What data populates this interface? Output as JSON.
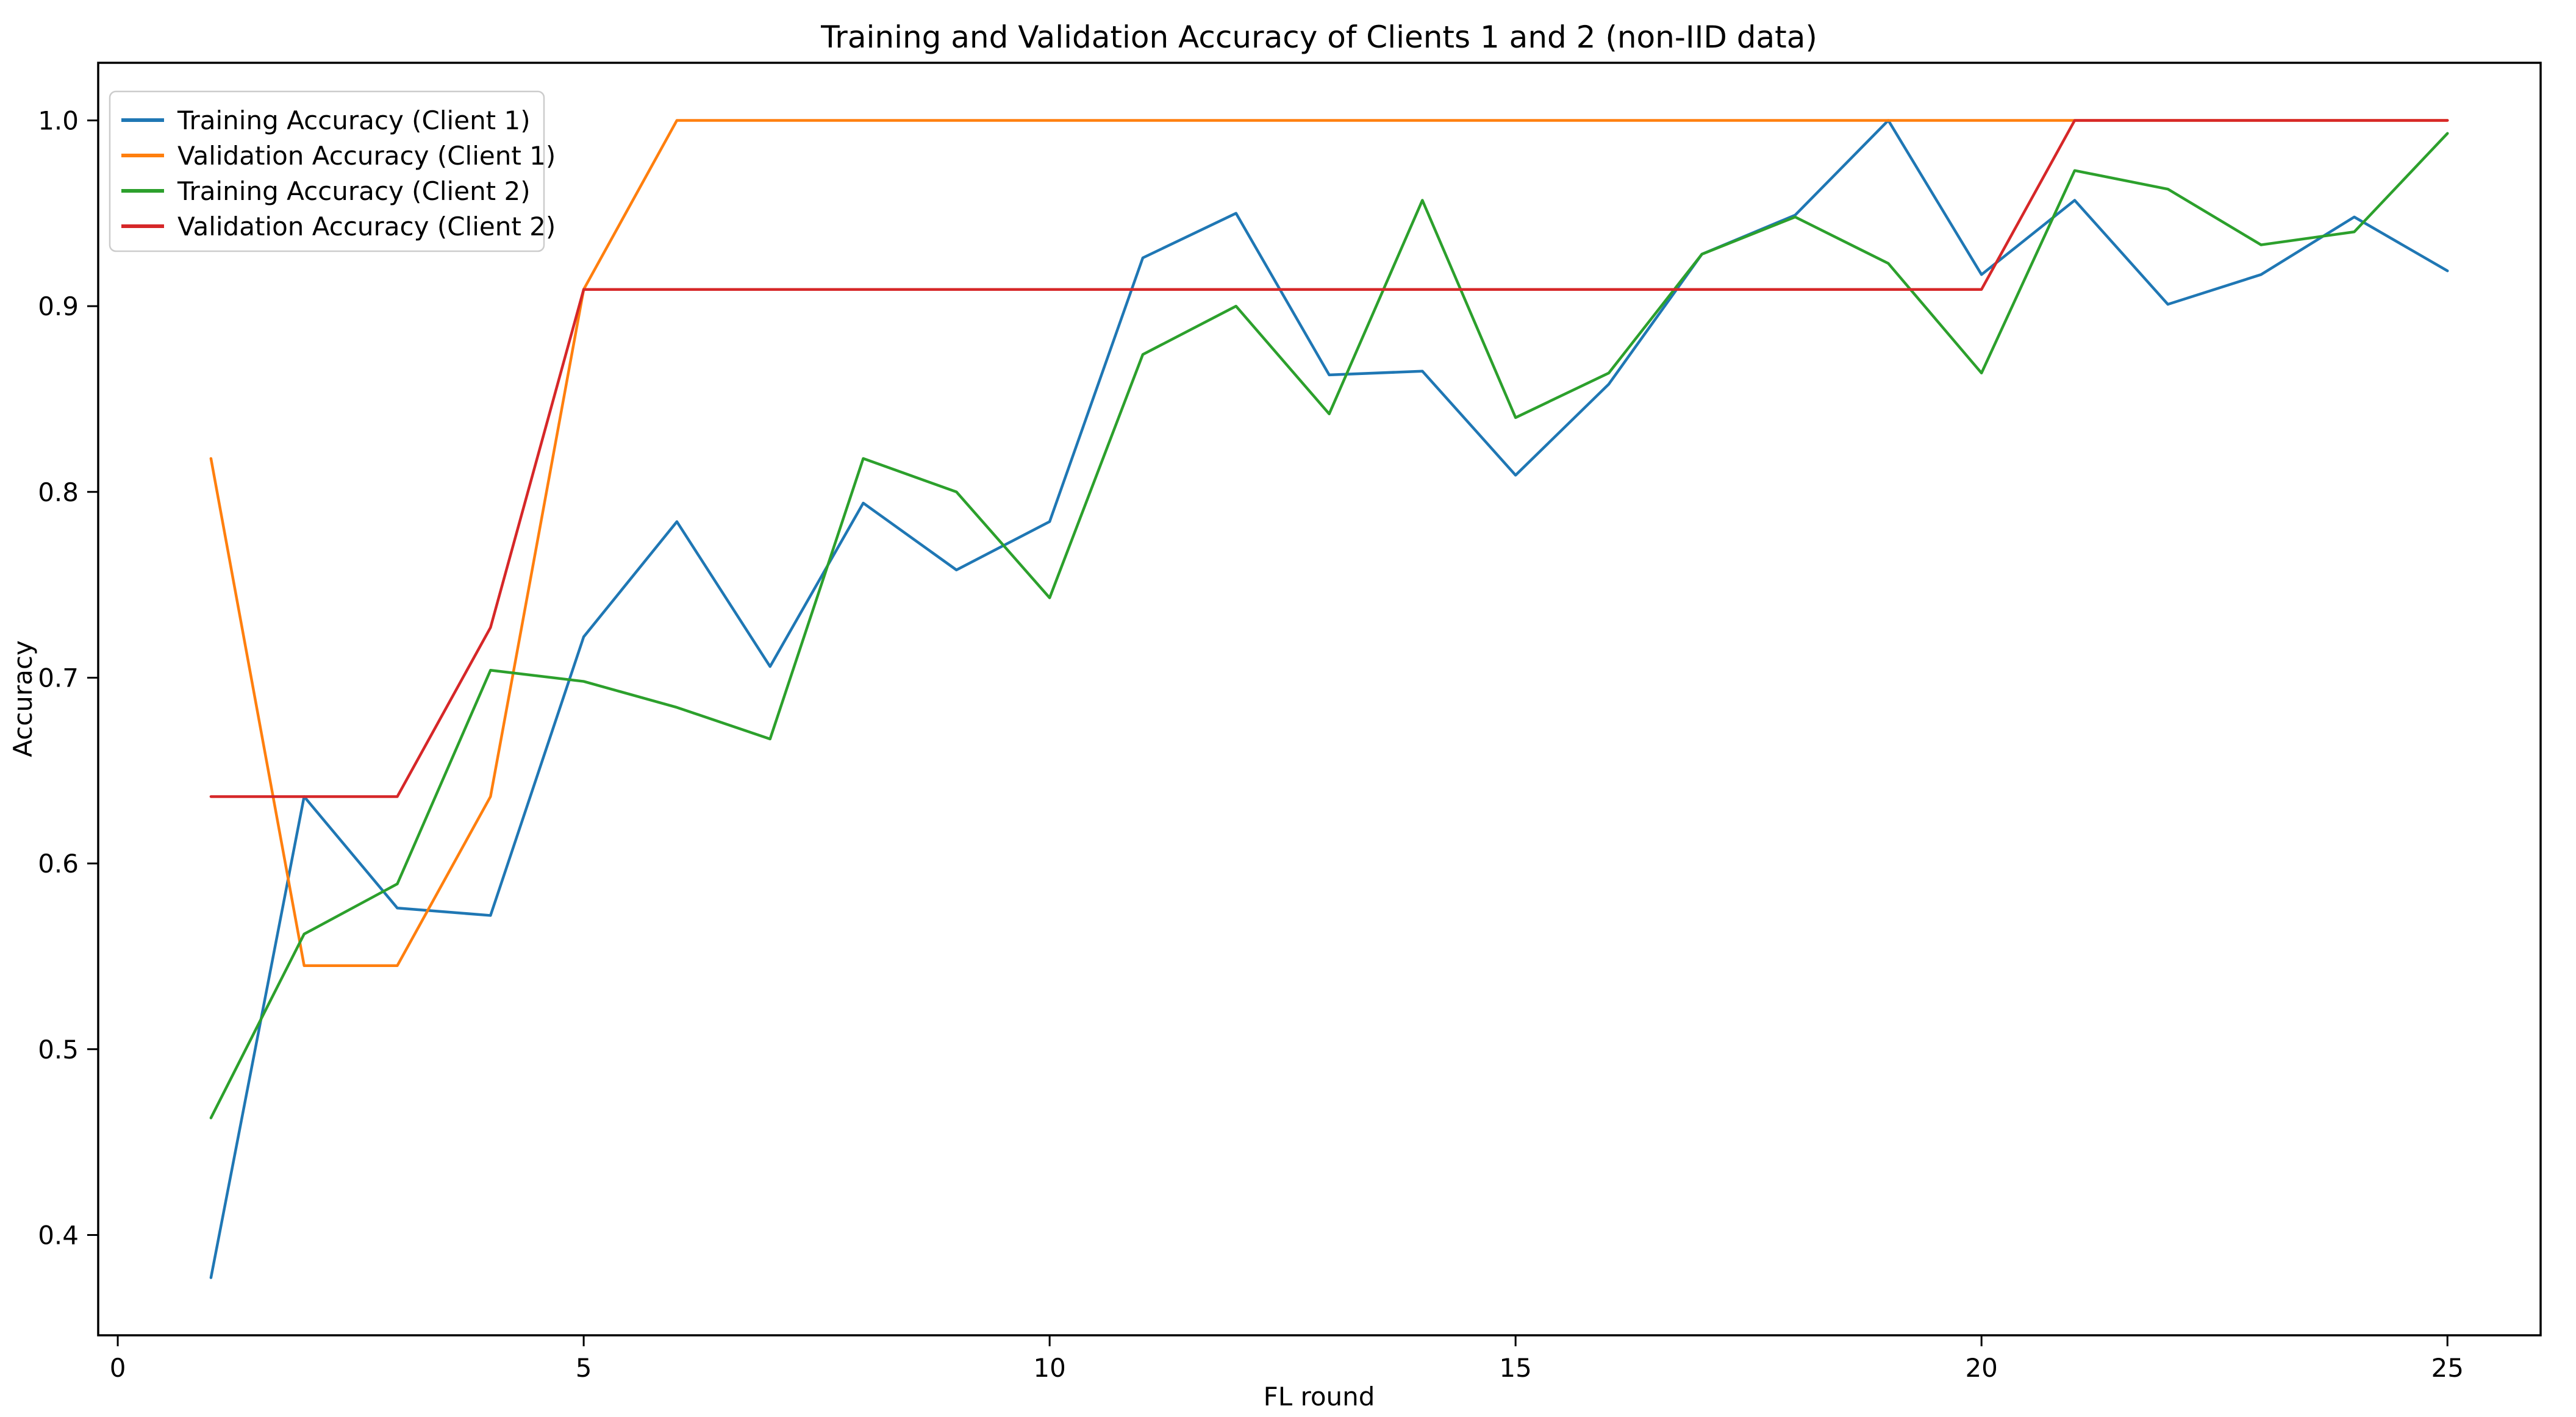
{
  "title": "Training and Validation Accuracy of Clients 1 and 2 (non-IID data)",
  "chart_data": {
    "type": "line",
    "title": "Training and Validation Accuracy of Clients 1 and 2 (non-IID data)",
    "xlabel": "FL round",
    "ylabel": "Accuracy",
    "x": [
      1,
      2,
      3,
      4,
      5,
      6,
      7,
      8,
      9,
      10,
      11,
      12,
      13,
      14,
      15,
      16,
      17,
      18,
      19,
      20,
      21,
      22,
      23,
      24,
      25
    ],
    "series": [
      {
        "name": "Training Accuracy (Client 1)",
        "color": "#1f77b4",
        "values": [
          0.377,
          0.636,
          0.576,
          0.572,
          0.722,
          0.784,
          0.706,
          0.794,
          0.758,
          0.784,
          0.926,
          0.95,
          0.863,
          0.865,
          0.809,
          0.858,
          0.928,
          0.949,
          1.0,
          0.917,
          0.957,
          0.901,
          0.917,
          0.948,
          0.919
        ]
      },
      {
        "name": "Validation Accuracy (Client 1)",
        "color": "#ff7f0e",
        "values": [
          0.818,
          0.545,
          0.545,
          0.636,
          0.909,
          1.0,
          1.0,
          1.0,
          1.0,
          1.0,
          1.0,
          1.0,
          1.0,
          1.0,
          1.0,
          1.0,
          1.0,
          1.0,
          1.0,
          1.0,
          1.0,
          1.0,
          1.0,
          1.0,
          1.0
        ]
      },
      {
        "name": "Training Accuracy (Client 2)",
        "color": "#2ca02c",
        "values": [
          0.463,
          0.562,
          0.589,
          0.704,
          0.698,
          0.684,
          0.667,
          0.818,
          0.8,
          0.743,
          0.874,
          0.9,
          0.842,
          0.957,
          0.84,
          0.864,
          0.928,
          0.948,
          0.923,
          0.864,
          0.973,
          0.963,
          0.933,
          0.94,
          0.993
        ]
      },
      {
        "name": "Validation Accuracy (Client 2)",
        "color": "#d62728",
        "values": [
          0.636,
          0.636,
          0.636,
          0.727,
          0.909,
          0.909,
          0.909,
          0.909,
          0.909,
          0.909,
          0.909,
          0.909,
          0.909,
          0.909,
          0.909,
          0.909,
          0.909,
          0.909,
          0.909,
          0.909,
          1.0,
          1.0,
          1.0,
          1.0,
          1.0
        ]
      }
    ],
    "xticks": [
      0,
      5,
      10,
      15,
      20,
      25
    ],
    "yticks": [
      0.4,
      0.5,
      0.6,
      0.7,
      0.8,
      0.9,
      1.0
    ],
    "xlim": [
      -0.21,
      26.0
    ],
    "ylim": [
      0.346,
      1.031
    ],
    "grid": false,
    "legend_position": "upper left",
    "background": "#ffffff",
    "spine_color": "#000000"
  }
}
